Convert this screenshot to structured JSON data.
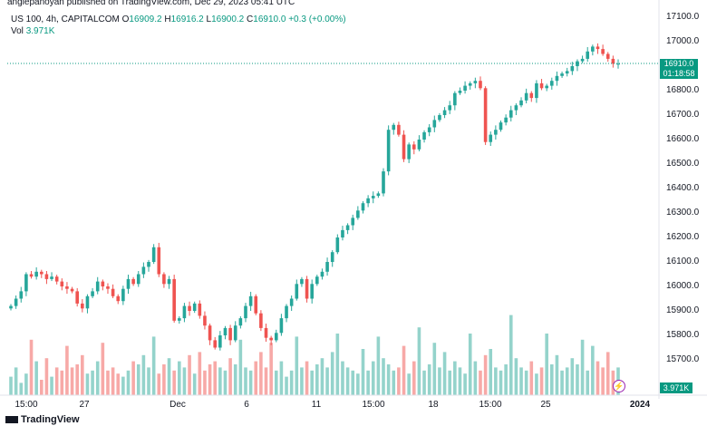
{
  "attribution": "anglepanoyan published on TradingView.com, Dec 29, 2023 05:41 UTC",
  "legend": {
    "symbol": "US 100, 4h, CAPITALCOM",
    "open_label": "O",
    "open": "16909.2",
    "high_label": "H",
    "high": "16916.2",
    "low_label": "L",
    "low": "16900.2",
    "close_label": "C",
    "close": "16910.0",
    "change": "+0.3 (+0.00%)",
    "vol_label": "Vol",
    "vol": "3.971K"
  },
  "price_axis": {
    "ticks": [
      "17100.0",
      "17000.0",
      "16800.0",
      "16700.0",
      "16600.0",
      "16500.0",
      "16400.0",
      "16300.0",
      "16200.0",
      "16100.0",
      "16000.0",
      "15900.0",
      "15800.0",
      "15700.0"
    ],
    "current_price": "16910.0",
    "countdown": "01:18:58",
    "volume_value": "3.971K"
  },
  "time_axis": {
    "labels": [
      "15:00",
      "27",
      "Dec",
      "6",
      "11",
      "15:00",
      "18",
      "15:00",
      "25",
      "2024"
    ]
  },
  "colors": {
    "up": "#26a69a",
    "down": "#ef5350",
    "vol_up": "#94d3cb",
    "vol_down": "#f7a9a7",
    "price_line": "#089981"
  },
  "icons": {
    "flash": "flash-icon",
    "logo": "tradingview-logo"
  },
  "footer": {
    "brand": "TradingView"
  },
  "chart_data": {
    "type": "candlestick",
    "title": "US 100, 4h, CAPITALCOM",
    "ylim": [
      15650,
      17130
    ],
    "closes": [
      15920,
      15950,
      15980,
      16050,
      16040,
      16060,
      16050,
      16030,
      16040,
      16020,
      16000,
      15990,
      15980,
      15930,
      15910,
      15960,
      15980,
      16020,
      16000,
      15990,
      15960,
      15940,
      15990,
      16030,
      16010,
      16050,
      16080,
      16100,
      16160,
      16050,
      16010,
      16030,
      15860,
      15870,
      15920,
      15900,
      15930,
      15880,
      15840,
      15780,
      15750,
      15800,
      15830,
      15780,
      15840,
      15870,
      15920,
      15960,
      15890,
      15830,
      15790,
      15780,
      15810,
      15870,
      15920,
      15950,
      16010,
      16030,
      15950,
      16010,
      16040,
      16060,
      16100,
      16140,
      16200,
      16230,
      16250,
      16280,
      16310,
      16340,
      16360,
      16370,
      16380,
      16470,
      16640,
      16660,
      16620,
      16520,
      16580,
      16560,
      16600,
      16630,
      16650,
      16680,
      16700,
      16720,
      16740,
      16790,
      16800,
      16820,
      16830,
      16840,
      16810,
      16590,
      16620,
      16640,
      16670,
      16690,
      16720,
      16740,
      16760,
      16790,
      16770,
      16830,
      16810,
      16820,
      16840,
      16860,
      16870,
      16880,
      16900,
      16920,
      16930,
      16960,
      16980,
      16970,
      16950,
      16930,
      16910,
      16910
    ],
    "volumes": [
      0.6,
      0.9,
      0.4,
      0.7,
      1.8,
      1.1,
      0.5,
      1.2,
      0.6,
      0.9,
      0.8,
      1.6,
      0.9,
      1.0,
      1.3,
      0.7,
      0.8,
      1.1,
      1.7,
      0.8,
      0.9,
      0.7,
      0.6,
      0.8,
      1.1,
      1.0,
      1.3,
      0.9,
      1.9,
      0.7,
      1.0,
      1.2,
      0.8,
      1.1,
      0.9,
      1.3,
      0.7,
      1.4,
      0.8,
      1.0,
      1.1,
      0.9,
      0.8,
      1.2,
      1.0,
      1.8,
      0.9,
      0.8,
      1.1,
      1.4,
      0.9,
      1.7,
      0.8,
      1.1,
      0.6,
      0.8,
      1.9,
      0.9,
      1.1,
      0.8,
      1.0,
      1.2,
      0.9,
      1.4,
      2.0,
      1.1,
      0.9,
      0.8,
      0.7,
      1.5,
      0.8,
      1.1,
      1.9,
      1.2,
      1.0,
      0.8,
      0.9,
      1.6,
      0.7,
      1.1,
      2.2,
      0.8,
      1.0,
      1.7,
      0.9,
      1.4,
      0.8,
      1.1,
      0.9,
      0.7,
      2.0,
      1.1,
      0.8,
      1.3,
      1.5,
      0.9,
      0.8,
      1.0,
      2.6,
      1.2,
      0.9,
      0.8,
      1.1,
      0.7,
      0.9,
      2.0,
      1.0,
      1.3,
      0.8,
      0.9,
      1.2,
      1.0,
      1.8,
      0.8,
      1.6,
      1.1,
      0.9,
      1.4,
      0.8,
      0.9
    ]
  }
}
